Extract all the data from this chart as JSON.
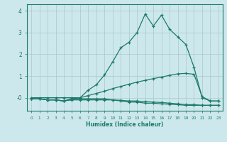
{
  "xlabel": "Humidex (Indice chaleur)",
  "x": [
    0,
    1,
    2,
    3,
    4,
    5,
    6,
    7,
    8,
    9,
    10,
    11,
    12,
    13,
    14,
    15,
    16,
    17,
    18,
    19,
    20,
    21,
    22,
    23
  ],
  "line1_y": [
    -0.05,
    -0.05,
    -0.1,
    -0.1,
    -0.15,
    -0.05,
    0.0,
    0.35,
    0.6,
    1.05,
    1.65,
    2.3,
    2.55,
    3.0,
    3.85,
    3.3,
    3.8,
    3.15,
    2.8,
    2.45,
    1.4,
    0.0,
    -0.15,
    -0.15
  ],
  "line2_y": [
    0.0,
    0.0,
    0.0,
    0.0,
    0.0,
    0.0,
    0.0,
    0.1,
    0.2,
    0.3,
    0.42,
    0.52,
    0.62,
    0.72,
    0.8,
    0.88,
    0.95,
    1.03,
    1.1,
    1.12,
    1.08,
    0.05,
    -0.15,
    -0.15
  ],
  "line3_y": [
    -0.05,
    -0.05,
    -0.1,
    -0.1,
    -0.15,
    -0.05,
    -0.05,
    -0.05,
    -0.05,
    -0.05,
    -0.1,
    -0.15,
    -0.2,
    -0.2,
    -0.25,
    -0.25,
    -0.28,
    -0.3,
    -0.32,
    -0.35,
    -0.35,
    -0.35,
    -0.35,
    -0.35
  ],
  "line4_y": [
    -0.05,
    -0.05,
    -0.1,
    -0.1,
    -0.15,
    -0.1,
    -0.1,
    -0.1,
    -0.1,
    -0.1,
    -0.1,
    -0.12,
    -0.15,
    -0.15,
    -0.18,
    -0.2,
    -0.22,
    -0.25,
    -0.28,
    -0.32,
    -0.32,
    -0.35,
    -0.35,
    -0.35
  ],
  "ylim": [
    -0.6,
    4.3
  ],
  "xlim": [
    -0.5,
    23.5
  ],
  "bg_color": "#cde8ec",
  "line_color": "#1a7a6a",
  "grid_color": "#a8c8cc"
}
